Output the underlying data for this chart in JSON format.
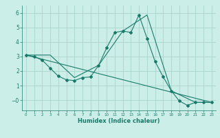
{
  "title": "",
  "xlabel": "Humidex (Indice chaleur)",
  "bg_color": "#cceee8",
  "grid_color": "#aad4ce",
  "line_color": "#1a7a6a",
  "xlim": [
    -0.5,
    23.5
  ],
  "ylim": [
    -0.7,
    6.5
  ],
  "yticks": [
    0,
    1,
    2,
    3,
    4,
    5,
    6
  ],
  "ytick_labels": [
    "−0",
    "1",
    "2",
    "3",
    "4",
    "5",
    "6"
  ],
  "xticks": [
    0,
    1,
    2,
    3,
    4,
    5,
    6,
    7,
    8,
    9,
    10,
    11,
    12,
    13,
    14,
    15,
    16,
    17,
    18,
    19,
    20,
    21,
    22,
    23
  ],
  "line1_x": [
    0,
    1,
    2,
    3,
    4,
    5,
    6,
    7,
    8,
    9,
    10,
    11,
    12,
    13,
    14,
    15,
    16,
    17,
    18,
    19,
    20,
    21,
    22,
    23
  ],
  "line1_y": [
    3.1,
    3.0,
    2.75,
    2.2,
    1.65,
    1.4,
    1.35,
    1.55,
    1.6,
    2.4,
    3.6,
    4.65,
    4.75,
    4.65,
    5.85,
    4.25,
    2.65,
    1.6,
    0.65,
    -0.05,
    -0.35,
    -0.15,
    -0.15,
    -0.15
  ],
  "line2_x": [
    0,
    3,
    6,
    9,
    12,
    15,
    18,
    21,
    23
  ],
  "line2_y": [
    3.1,
    3.1,
    1.55,
    2.4,
    4.75,
    5.85,
    0.65,
    -0.15,
    -0.15
  ],
  "line3_x": [
    0,
    23
  ],
  "line3_y": [
    3.1,
    -0.15
  ]
}
